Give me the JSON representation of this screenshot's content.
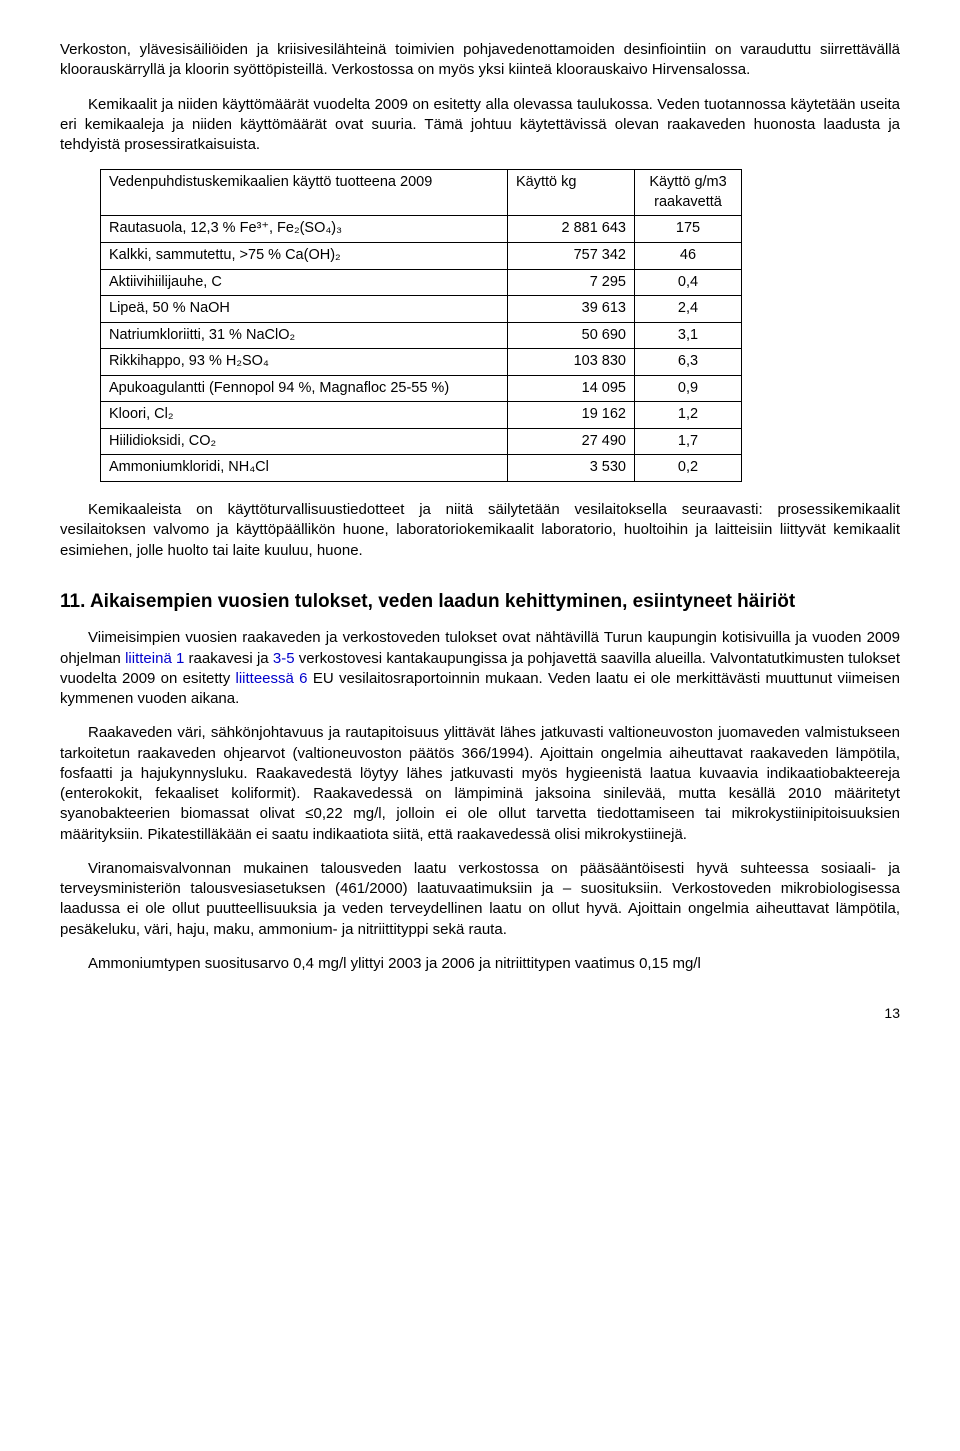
{
  "para1": "Verkoston, ylävesisäiliöiden ja kriisivesilähteinä toimivien pohjavedenottamoiden desinfiointiin on varauduttu siirrettävällä kloorauskärryllä ja kloorin syöttöpisteillä. Verkostossa on myös yksi kiinteä kloorauskaivo Hirvensalossa.",
  "para2": "Kemikaalit ja niiden käyttömäärät vuodelta 2009 on esitetty alla olevassa taulukossa. Veden tuotannossa käytetään useita eri kemikaaleja ja niiden käyttömäärät ovat suuria. Tämä johtuu käytettävissä olevan raakaveden huonosta laadusta ja tehdyistä prosessiratkaisuista.",
  "table": {
    "header_c1": "Vedenpuhdistuskemikaalien käyttö tuotteena 2009",
    "header_c2": "Käyttö    kg",
    "header_c3": "Käyttö g/m3 raakavettä",
    "rows": [
      {
        "name": "Rautasuola, 12,3 % Fe³⁺, Fe₂(SO₄)₃",
        "kg": "2 881 643",
        "gm3": "175"
      },
      {
        "name": "Kalkki, sammutettu, >75 % Ca(OH)₂",
        "kg": "757 342",
        "gm3": "46"
      },
      {
        "name": "Aktiivihiilijauhe, C",
        "kg": "7 295",
        "gm3": "0,4"
      },
      {
        "name": "Lipeä, 50 % NaOH",
        "kg": "39 613",
        "gm3": "2,4"
      },
      {
        "name": "Natriumkloriitti, 31 % NaClO₂",
        "kg": "50 690",
        "gm3": "3,1"
      },
      {
        "name": "Rikkihappo, 93 % H₂SO₄",
        "kg": "103 830",
        "gm3": "6,3"
      },
      {
        "name": "Apukoagulantti (Fennopol 94 %, Magnafloc 25-55 %)",
        "kg": "14 095",
        "gm3": "0,9"
      },
      {
        "name": "Kloori, Cl₂",
        "kg": "19 162",
        "gm3": "1,2"
      },
      {
        "name": "Hiilidioksidi, CO₂",
        "kg": "27 490",
        "gm3": "1,7"
      },
      {
        "name": "Ammoniumkloridi, NH₄Cl",
        "kg": "3 530",
        "gm3": "0,2"
      }
    ]
  },
  "para3": "Kemikaaleista on käyttöturvallisuustiedotteet ja niitä säilytetään vesilaitoksella seuraavasti: prosessikemikaalit vesilaitoksen valvomo ja käyttöpäällikön  huone, laboratoriokemikaalit laboratorio, huoltoihin ja laitteisiin liittyvät kemikaalit esimiehen, jolle huolto tai laite kuuluu, huone.",
  "heading": "11. Aikaisempien vuosien tulokset, veden laadun kehittyminen, esiintyneet häiriöt",
  "para4_a": "Viimeisimpien vuosien raakaveden ja verkostoveden tulokset ovat nähtävillä Turun kaupungin kotisivuilla ja vuoden 2009 ohjelman ",
  "para4_link1": "liitteinä 1",
  "para4_b": " raakavesi ja ",
  "para4_link2": "3-5",
  "para4_c": " verkostovesi kantakaupungissa ja pohjavettä saavilla alueilla. Valvontatutkimusten tulokset vuodelta 2009 on esitetty ",
  "para4_link3": "liitteessä 6",
  "para4_d": " EU vesilaitosraportoinnin mukaan. Veden laatu ei ole merkittävästi muuttunut viimeisen kymmenen vuoden aikana.",
  "para5": "Raakaveden väri, sähkönjohtavuus ja rautapitoisuus ylittävät lähes jatkuvasti valtioneuvoston juomaveden valmistukseen tarkoitetun raakaveden ohjearvot (valtioneuvoston päätös 366/1994). Ajoittain ongelmia aiheuttavat raakaveden lämpötila, fosfaatti ja hajukynnysluku. Raakavedestä löytyy lähes jatkuvasti myös hygieenistä laatua kuvaavia indikaatiobakteereja (enterokokit, fekaaliset koliformit). Raakavedessä on lämpiminä jaksoina sinilevää, mutta kesällä 2010 määritetyt syanobakteerien biomassat olivat ≤0,22 mg/l, jolloin ei ole ollut tarvetta tiedottamiseen tai mikrokystiinipitoisuuksien määrityksiin. Pikatestilläkään ei saatu indikaatiota siitä, että raakavedessä olisi mikrokystiinejä.",
  "para6": "Viranomaisvalvonnan mukainen talousveden laatu verkostossa on pääsääntöisesti hyvä suhteessa sosiaali- ja terveysministeriön talousvesiasetuksen (461/2000) laatuvaatimuksiin ja – suosituksiin. Verkostoveden mikrobiologisessa laadussa ei ole ollut puutteellisuuksia ja veden terveydellinen laatu on ollut hyvä. Ajoittain ongelmia aiheuttavat lämpötila, pesäkeluku, väri, haju, maku, ammonium- ja nitriittityppi sekä rauta.",
  "para7": "Ammoniumtypen suositusarvo 0,4 mg/l ylittyi 2003 ja 2006 ja nitriittitypen vaatimus 0,15 mg/l",
  "pagenum": "13"
}
